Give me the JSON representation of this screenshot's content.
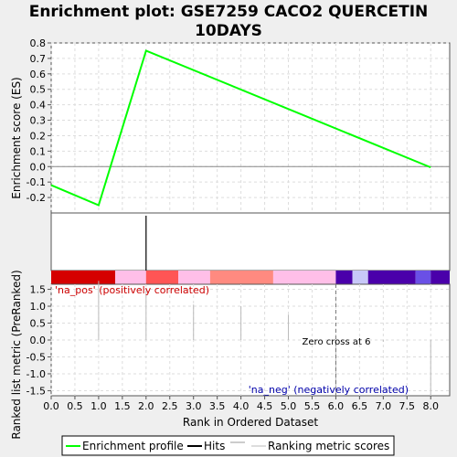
{
  "chart_data": {
    "type": "line",
    "title_lines": [
      "Enrichment plot: GSE7259 CACO2 QUERCETIN",
      "10DAYS"
    ],
    "xlabel": "Rank in Ordered Dataset",
    "es_panel": {
      "ylabel": "Enrichment score (ES)",
      "ylim": [
        -0.3,
        0.8
      ],
      "yticks": [
        -0.2,
        -0.1,
        0.0,
        0.1,
        0.2,
        0.3,
        0.4,
        0.5,
        0.6,
        0.7,
        0.8
      ],
      "series": [
        {
          "name": "Enrichment profile",
          "color": "#00ff00",
          "x": [
            0,
            1,
            2,
            8
          ],
          "y": [
            -0.12,
            -0.25,
            0.75,
            -0.005
          ]
        }
      ]
    },
    "hits": {
      "x": [
        2
      ]
    },
    "ranking_panel": {
      "ylabel": "Ranked list metric (PreRanked)",
      "ylim": [
        -1.65,
        1.65
      ],
      "yticks": [
        -1.5,
        -1.0,
        -0.5,
        0.0,
        0.5,
        1.0,
        1.5
      ],
      "bars": [
        {
          "x": 1,
          "value": 1.75
        },
        {
          "x": 2,
          "value": 1.45
        },
        {
          "x": 3,
          "value": 1.05
        },
        {
          "x": 4,
          "value": 1.0
        },
        {
          "x": 5,
          "value": 0.75
        },
        {
          "x": 6,
          "value": -1.65
        },
        {
          "x": 7,
          "value": -0.05
        },
        {
          "x": 8,
          "value": -1.65
        }
      ],
      "pos_label": "'na_pos' (positively correlated)",
      "neg_label": "'na_neg' (negatively correlated)",
      "zero_cross_label": "Zero cross at 6",
      "zero_cross_x": 6
    },
    "xlim": [
      0,
      8.4
    ],
    "xticks": [
      0.0,
      0.5,
      1.0,
      1.5,
      2.0,
      2.5,
      3.0,
      3.5,
      4.0,
      4.5,
      5.0,
      5.5,
      6.0,
      6.5,
      7.0,
      7.5,
      8.0
    ],
    "heat_segments": [
      {
        "x0": 0.0,
        "x1": 1.35,
        "color": "#d50000"
      },
      {
        "x0": 1.35,
        "x1": 2.0,
        "color": "#ffbfe8"
      },
      {
        "x0": 2.0,
        "x1": 2.68,
        "color": "#ff5555"
      },
      {
        "x0": 2.68,
        "x1": 3.35,
        "color": "#ffbfe8"
      },
      {
        "x0": 3.35,
        "x1": 4.68,
        "color": "#ff8a80"
      },
      {
        "x0": 4.68,
        "x1": 6.0,
        "color": "#ffbfe8"
      },
      {
        "x0": 6.0,
        "x1": 6.35,
        "color": "#4a00aa"
      },
      {
        "x0": 6.35,
        "x1": 6.68,
        "color": "#c8c8f8"
      },
      {
        "x0": 6.68,
        "x1": 7.68,
        "color": "#4a00aa"
      },
      {
        "x0": 7.68,
        "x1": 8.0,
        "color": "#6a50e6"
      },
      {
        "x0": 8.0,
        "x1": 8.4,
        "color": "#4a00aa"
      }
    ],
    "legend": {
      "placement": "bottom",
      "items": [
        {
          "label": "Enrichment profile",
          "color": "#00ff00"
        },
        {
          "label": "Hits",
          "color": "#000000"
        },
        {
          "label": "Ranking metric scores",
          "color": "#bbbbbb"
        }
      ]
    }
  }
}
